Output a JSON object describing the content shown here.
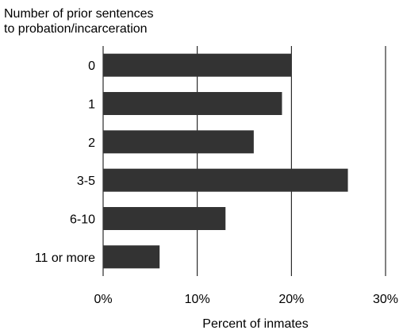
{
  "chart_data": {
    "type": "bar",
    "orientation": "horizontal",
    "ylabel": [
      "Number of prior sentences",
      "to probation/incarceration"
    ],
    "xlabel": "Percent of inmates",
    "categories": [
      "0",
      "1",
      "2",
      "3-5",
      "6-10",
      "11 or more"
    ],
    "values": [
      20,
      19,
      16,
      26,
      13,
      6
    ],
    "xlim": [
      0,
      30
    ],
    "xticks": [
      0,
      10,
      20,
      30
    ],
    "xtick_labels": [
      "0%",
      "10%",
      "20%",
      "30%"
    ],
    "grid": "vertical",
    "bar_color": "#333333",
    "legend": "none"
  }
}
